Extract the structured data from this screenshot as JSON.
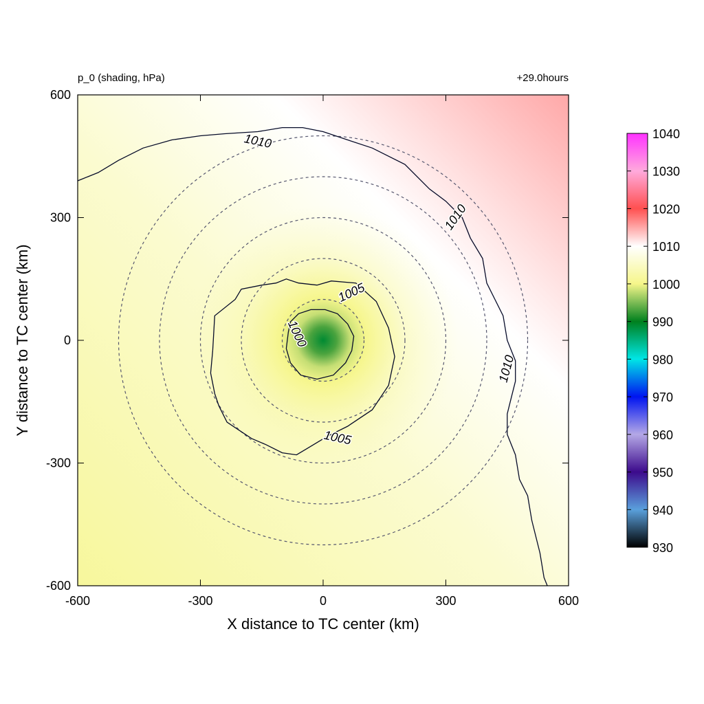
{
  "header": {
    "left_title": "p_0 (shading, hPa)",
    "right_title": "+29.0hours"
  },
  "chart_data": {
    "type": "heatmap",
    "title": "p_0 (shading, hPa)",
    "subtitle": "+29.0hours",
    "xlabel": "X distance to TC center (km)",
    "ylabel": "Y distance to TC center (km)",
    "xlim": [
      -600,
      600
    ],
    "ylim": [
      -600,
      600
    ],
    "x_ticks": [
      -600,
      -300,
      0,
      300,
      600
    ],
    "y_ticks": [
      -600,
      -300,
      0,
      300,
      600
    ],
    "grid": false,
    "range_rings_km": [
      100,
      200,
      300,
      400,
      500
    ],
    "range_ring_style": "dashed",
    "colorbar": {
      "placement": "right",
      "min": 930,
      "max": 1040,
      "tick_values": [
        930,
        940,
        950,
        960,
        970,
        980,
        990,
        1000,
        1010,
        1020,
        1030,
        1040
      ],
      "tick_labels": [
        "930",
        "940",
        "950",
        "960",
        "970",
        "980",
        "990",
        "1000",
        "1010",
        "1020",
        "1030",
        "1040"
      ],
      "colors": [
        {
          "value": 930,
          "color": "#000000"
        },
        {
          "value": 940,
          "color": "#5aa0dc"
        },
        {
          "value": 950,
          "color": "#3c0a8c"
        },
        {
          "value": 960,
          "color": "#b4a8e6"
        },
        {
          "value": 970,
          "color": "#0014f0"
        },
        {
          "value": 980,
          "color": "#00e6e6"
        },
        {
          "value": 990,
          "color": "#00801e"
        },
        {
          "value": 1000,
          "color": "#f6f68a"
        },
        {
          "value": 1010,
          "color": "#ffffff"
        },
        {
          "value": 1020,
          "color": "#ff5050"
        },
        {
          "value": 1030,
          "color": "#ffaadc"
        },
        {
          "value": 1040,
          "color": "#ff32ff"
        }
      ]
    },
    "field": {
      "center_x_km": 0,
      "center_y_km": 0,
      "center_value": 989,
      "gradient_direction": "increasing toward upper-right",
      "max_value_upper_right": 1015
    },
    "contours": [
      {
        "level": 1000,
        "label": "1000"
      },
      {
        "level": 1005,
        "label": "1005"
      },
      {
        "level": 1010,
        "label": "1010"
      }
    ],
    "contour_labels": [
      {
        "text": "1010",
        "x": -160,
        "y": 485,
        "angle": -12
      },
      {
        "text": "1010",
        "x": 325,
        "y": 300,
        "angle": 55
      },
      {
        "text": "1010",
        "x": 450,
        "y": -70,
        "angle": 75
      },
      {
        "text": "1005",
        "x": 70,
        "y": 115,
        "angle": 25
      },
      {
        "text": "1005",
        "x": 35,
        "y": -240,
        "angle": -12
      },
      {
        "text": "1000",
        "x": -65,
        "y": 15,
        "angle": -65
      }
    ],
    "contour_lines": [
      {
        "level": 1000,
        "points": [
          [
            -85,
            20
          ],
          [
            -80,
            45
          ],
          [
            -60,
            65
          ],
          [
            -30,
            75
          ],
          [
            5,
            75
          ],
          [
            35,
            65
          ],
          [
            60,
            40
          ],
          [
            75,
            10
          ],
          [
            70,
            -25
          ],
          [
            55,
            -55
          ],
          [
            25,
            -85
          ],
          [
            -15,
            -95
          ],
          [
            -55,
            -85
          ],
          [
            -80,
            -55
          ],
          [
            -90,
            -20
          ],
          [
            -85,
            20
          ]
        ]
      },
      {
        "level": 1005,
        "points": [
          [
            -270,
            -25
          ],
          [
            -265,
            60
          ],
          [
            -215,
            100
          ],
          [
            -200,
            125
          ],
          [
            -150,
            135
          ],
          [
            -115,
            140
          ],
          [
            -90,
            150
          ],
          [
            -60,
            140
          ],
          [
            -15,
            135
          ],
          [
            20,
            145
          ],
          [
            80,
            140
          ],
          [
            130,
            95
          ],
          [
            160,
            30
          ],
          [
            175,
            -40
          ],
          [
            160,
            -110
          ],
          [
            120,
            -170
          ],
          [
            60,
            -210
          ],
          [
            10,
            -235
          ],
          [
            -40,
            -265
          ],
          [
            -65,
            -280
          ],
          [
            -100,
            -275
          ],
          [
            -140,
            -255
          ],
          [
            -175,
            -240
          ],
          [
            -205,
            -220
          ],
          [
            -235,
            -200
          ],
          [
            -255,
            -160
          ],
          [
            -265,
            -130
          ],
          [
            -275,
            -80
          ],
          [
            -270,
            -25
          ]
        ]
      },
      {
        "level": 1010,
        "points": [
          [
            -600,
            390
          ],
          [
            -550,
            410
          ],
          [
            -500,
            440
          ],
          [
            -440,
            470
          ],
          [
            -370,
            490
          ],
          [
            -300,
            500
          ],
          [
            -240,
            505
          ],
          [
            -160,
            510
          ],
          [
            -100,
            520
          ],
          [
            -50,
            520
          ],
          [
            0,
            510
          ],
          [
            60,
            490
          ],
          [
            120,
            470
          ],
          [
            200,
            430
          ],
          [
            260,
            370
          ],
          [
            300,
            340
          ],
          [
            340,
            300
          ],
          [
            360,
            250
          ],
          [
            390,
            200
          ],
          [
            400,
            140
          ],
          [
            420,
            100
          ],
          [
            440,
            60
          ],
          [
            450,
            0
          ],
          [
            470,
            -50
          ],
          [
            470,
            -100
          ],
          [
            460,
            -140
          ],
          [
            450,
            -180
          ],
          [
            450,
            -230
          ],
          [
            470,
            -280
          ],
          [
            480,
            -340
          ],
          [
            500,
            -380
          ],
          [
            510,
            -440
          ],
          [
            530,
            -520
          ],
          [
            540,
            -580
          ],
          [
            548,
            -600
          ]
        ]
      }
    ]
  }
}
